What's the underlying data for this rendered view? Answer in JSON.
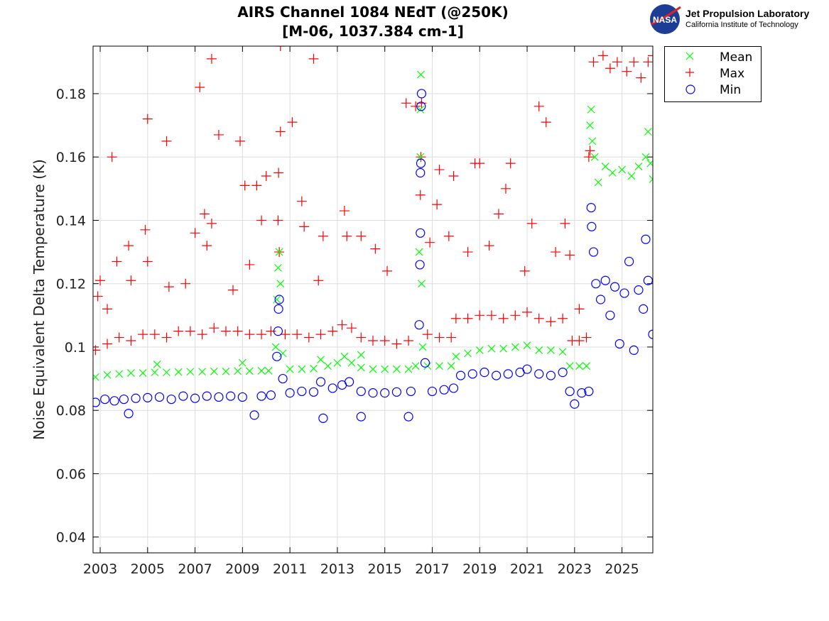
{
  "logo": {
    "org": "Jet Propulsion Laboratory",
    "sub": "California Institute of Technology",
    "badge": "NASA"
  },
  "chart_data": {
    "type": "scatter",
    "title": "AIRS Channel 1084 NEdT (@250K)",
    "subtitle": "[M-06, 1037.384 cm-1]",
    "xlabel": "",
    "ylabel": "Noise Equivalent Delta Temperature (K)",
    "xlim": [
      2002.7,
      2026.3
    ],
    "ylim": [
      0.035,
      0.195
    ],
    "xticks": [
      2003,
      2005,
      2007,
      2009,
      2011,
      2013,
      2015,
      2017,
      2019,
      2021,
      2023,
      2025
    ],
    "yticks": [
      0.04,
      0.06,
      0.08,
      0.1,
      0.12,
      0.14,
      0.16,
      0.18
    ],
    "ytick_labels": [
      "0.04",
      "0.06",
      "0.08",
      "0.1",
      "0.12",
      "0.14",
      "0.16",
      "0.18"
    ],
    "grid": true,
    "legend_position": "outside-top-right",
    "series": [
      {
        "name": "Mean",
        "marker": "x",
        "color": "#00ff00",
        "points": [
          [
            2002.8,
            0.0905
          ],
          [
            2003.3,
            0.0912
          ],
          [
            2003.8,
            0.0915
          ],
          [
            2004.3,
            0.0918
          ],
          [
            2004.8,
            0.0918
          ],
          [
            2005.3,
            0.092
          ],
          [
            2005.4,
            0.0945
          ],
          [
            2005.8,
            0.092
          ],
          [
            2006.3,
            0.0921
          ],
          [
            2006.8,
            0.0922
          ],
          [
            2007.3,
            0.0922
          ],
          [
            2007.8,
            0.0923
          ],
          [
            2008.3,
            0.0923
          ],
          [
            2008.8,
            0.0924
          ],
          [
            2009.0,
            0.095
          ],
          [
            2009.3,
            0.0924
          ],
          [
            2009.8,
            0.0925
          ],
          [
            2010.1,
            0.0925
          ],
          [
            2010.4,
            0.1
          ],
          [
            2010.45,
            0.115
          ],
          [
            2010.5,
            0.125
          ],
          [
            2010.55,
            0.13
          ],
          [
            2010.6,
            0.12
          ],
          [
            2010.7,
            0.098
          ],
          [
            2011.0,
            0.093
          ],
          [
            2011.5,
            0.093
          ],
          [
            2012.0,
            0.0932
          ],
          [
            2012.3,
            0.096
          ],
          [
            2012.6,
            0.094
          ],
          [
            2013.0,
            0.095
          ],
          [
            2013.3,
            0.097
          ],
          [
            2013.6,
            0.095
          ],
          [
            2014.0,
            0.0935
          ],
          [
            2014.0,
            0.0975
          ],
          [
            2014.5,
            0.093
          ],
          [
            2015.0,
            0.093
          ],
          [
            2015.5,
            0.093
          ],
          [
            2016.0,
            0.093
          ],
          [
            2016.3,
            0.094
          ],
          [
            2016.45,
            0.13
          ],
          [
            2016.5,
            0.16
          ],
          [
            2016.5,
            0.175
          ],
          [
            2016.52,
            0.186
          ],
          [
            2016.55,
            0.12
          ],
          [
            2016.6,
            0.1
          ],
          [
            2016.8,
            0.094
          ],
          [
            2017.3,
            0.094
          ],
          [
            2017.8,
            0.094
          ],
          [
            2018.0,
            0.097
          ],
          [
            2018.5,
            0.098
          ],
          [
            2019.0,
            0.099
          ],
          [
            2019.5,
            0.0995
          ],
          [
            2020.0,
            0.0995
          ],
          [
            2020.5,
            0.1
          ],
          [
            2021.0,
            0.1005
          ],
          [
            2021.5,
            0.099
          ],
          [
            2022.0,
            0.099
          ],
          [
            2022.5,
            0.0985
          ],
          [
            2022.8,
            0.094
          ],
          [
            2023.2,
            0.094
          ],
          [
            2023.5,
            0.094
          ],
          [
            2023.65,
            0.17
          ],
          [
            2023.7,
            0.175
          ],
          [
            2023.75,
            0.165
          ],
          [
            2023.85,
            0.16
          ],
          [
            2024.0,
            0.152
          ],
          [
            2024.3,
            0.157
          ],
          [
            2024.6,
            0.155
          ],
          [
            2025.0,
            0.156
          ],
          [
            2025.4,
            0.154
          ],
          [
            2025.7,
            0.157
          ],
          [
            2026.0,
            0.16
          ],
          [
            2026.1,
            0.168
          ],
          [
            2026.2,
            0.158
          ],
          [
            2026.3,
            0.153
          ]
        ]
      },
      {
        "name": "Max",
        "marker": "+",
        "color": "#ff0000",
        "points": [
          [
            2002.8,
            0.099
          ],
          [
            2003.3,
            0.101
          ],
          [
            2003.8,
            0.103
          ],
          [
            2004.3,
            0.102
          ],
          [
            2004.8,
            0.104
          ],
          [
            2005.3,
            0.104
          ],
          [
            2005.8,
            0.103
          ],
          [
            2006.3,
            0.105
          ],
          [
            2006.8,
            0.105
          ],
          [
            2007.3,
            0.104
          ],
          [
            2007.8,
            0.106
          ],
          [
            2008.3,
            0.105
          ],
          [
            2008.8,
            0.105
          ],
          [
            2009.3,
            0.104
          ],
          [
            2009.8,
            0.104
          ],
          [
            2010.2,
            0.105
          ],
          [
            2010.5,
            0.14
          ],
          [
            2010.52,
            0.155
          ],
          [
            2010.55,
            0.13
          ],
          [
            2010.8,
            0.104
          ],
          [
            2011.3,
            0.104
          ],
          [
            2011.8,
            0.103
          ],
          [
            2012.3,
            0.104
          ],
          [
            2012.8,
            0.105
          ],
          [
            2013.2,
            0.107
          ],
          [
            2013.6,
            0.106
          ],
          [
            2014.0,
            0.103
          ],
          [
            2014.5,
            0.102
          ],
          [
            2015.0,
            0.102
          ],
          [
            2015.5,
            0.101
          ],
          [
            2016.0,
            0.102
          ],
          [
            2016.5,
            0.148
          ],
          [
            2016.52,
            0.16
          ],
          [
            2016.55,
            0.177
          ],
          [
            2016.8,
            0.104
          ],
          [
            2017.3,
            0.103
          ],
          [
            2017.8,
            0.103
          ],
          [
            2018.0,
            0.109
          ],
          [
            2018.5,
            0.109
          ],
          [
            2019.0,
            0.11
          ],
          [
            2019.5,
            0.11
          ],
          [
            2020.0,
            0.109
          ],
          [
            2020.5,
            0.11
          ],
          [
            2021.0,
            0.111
          ],
          [
            2021.5,
            0.109
          ],
          [
            2022.0,
            0.108
          ],
          [
            2022.5,
            0.109
          ],
          [
            2022.9,
            0.102
          ],
          [
            2023.2,
            0.102
          ],
          [
            2023.5,
            0.103
          ],
          [
            2023.6,
            0.16
          ],
          [
            2023.65,
            0.162
          ],
          [
            2023.8,
            0.19
          ],
          [
            2024.2,
            0.192
          ],
          [
            2024.5,
            0.188
          ],
          [
            2024.8,
            0.19
          ],
          [
            2025.2,
            0.187
          ],
          [
            2025.5,
            0.19
          ],
          [
            2025.8,
            0.185
          ],
          [
            2026.1,
            0.19
          ],
          [
            2026.3,
            0.192
          ],
          [
            2002.9,
            0.116
          ],
          [
            2003.0,
            0.121
          ],
          [
            2003.3,
            0.112
          ],
          [
            2003.5,
            0.16
          ],
          [
            2003.7,
            0.127
          ],
          [
            2004.2,
            0.132
          ],
          [
            2004.3,
            0.121
          ],
          [
            2004.9,
            0.137
          ],
          [
            2005.0,
            0.172
          ],
          [
            2005.0,
            0.127
          ],
          [
            2005.8,
            0.165
          ],
          [
            2005.9,
            0.119
          ],
          [
            2006.6,
            0.12
          ],
          [
            2007.0,
            0.136
          ],
          [
            2007.2,
            0.182
          ],
          [
            2007.4,
            0.142
          ],
          [
            2007.5,
            0.132
          ],
          [
            2007.7,
            0.191
          ],
          [
            2007.7,
            0.139
          ],
          [
            2008.0,
            0.167
          ],
          [
            2008.6,
            0.118
          ],
          [
            2008.9,
            0.165
          ],
          [
            2009.1,
            0.151
          ],
          [
            2009.3,
            0.126
          ],
          [
            2009.6,
            0.151
          ],
          [
            2009.8,
            0.14
          ],
          [
            2010.0,
            0.154
          ],
          [
            2010.6,
            0.168
          ],
          [
            2010.6,
            0.195
          ],
          [
            2011.1,
            0.171
          ],
          [
            2011.5,
            0.146
          ],
          [
            2011.6,
            0.138
          ],
          [
            2012.0,
            0.191
          ],
          [
            2012.2,
            0.121
          ],
          [
            2012.4,
            0.135
          ],
          [
            2013.3,
            0.143
          ],
          [
            2013.4,
            0.135
          ],
          [
            2014.0,
            0.135
          ],
          [
            2014.6,
            0.131
          ],
          [
            2015.1,
            0.124
          ],
          [
            2015.9,
            0.177
          ],
          [
            2016.3,
            0.176
          ],
          [
            2016.9,
            0.133
          ],
          [
            2017.2,
            0.145
          ],
          [
            2017.3,
            0.156
          ],
          [
            2017.7,
            0.135
          ],
          [
            2017.9,
            0.154
          ],
          [
            2018.5,
            0.13
          ],
          [
            2018.8,
            0.158
          ],
          [
            2019.0,
            0.158
          ],
          [
            2019.4,
            0.132
          ],
          [
            2019.8,
            0.142
          ],
          [
            2020.1,
            0.15
          ],
          [
            2020.3,
            0.158
          ],
          [
            2020.9,
            0.124
          ],
          [
            2021.2,
            0.139
          ],
          [
            2021.5,
            0.176
          ],
          [
            2021.8,
            0.171
          ],
          [
            2022.2,
            0.13
          ],
          [
            2022.6,
            0.139
          ],
          [
            2022.8,
            0.129
          ],
          [
            2023.2,
            0.112
          ]
        ]
      },
      {
        "name": "Min",
        "marker": "o",
        "color": "#0000ff",
        "points": [
          [
            2002.8,
            0.0825
          ],
          [
            2003.2,
            0.0835
          ],
          [
            2003.6,
            0.083
          ],
          [
            2004.0,
            0.0835
          ],
          [
            2004.2,
            0.079
          ],
          [
            2004.5,
            0.0838
          ],
          [
            2005.0,
            0.084
          ],
          [
            2005.5,
            0.0842
          ],
          [
            2006.0,
            0.0835
          ],
          [
            2006.5,
            0.0845
          ],
          [
            2007.0,
            0.0838
          ],
          [
            2007.5,
            0.0845
          ],
          [
            2008.0,
            0.0842
          ],
          [
            2008.5,
            0.0845
          ],
          [
            2009.0,
            0.0842
          ],
          [
            2009.5,
            0.0785
          ],
          [
            2009.8,
            0.0845
          ],
          [
            2010.2,
            0.0848
          ],
          [
            2010.45,
            0.097
          ],
          [
            2010.5,
            0.105
          ],
          [
            2010.52,
            0.112
          ],
          [
            2010.55,
            0.115
          ],
          [
            2010.7,
            0.09
          ],
          [
            2011.0,
            0.0855
          ],
          [
            2011.5,
            0.086
          ],
          [
            2012.0,
            0.0858
          ],
          [
            2012.3,
            0.089
          ],
          [
            2012.4,
            0.0775
          ],
          [
            2012.8,
            0.087
          ],
          [
            2013.2,
            0.088
          ],
          [
            2013.5,
            0.089
          ],
          [
            2014.0,
            0.078
          ],
          [
            2014.0,
            0.086
          ],
          [
            2014.5,
            0.0855
          ],
          [
            2015.0,
            0.0855
          ],
          [
            2015.5,
            0.0858
          ],
          [
            2016.0,
            0.078
          ],
          [
            2016.1,
            0.086
          ],
          [
            2016.45,
            0.107
          ],
          [
            2016.48,
            0.126
          ],
          [
            2016.5,
            0.136
          ],
          [
            2016.5,
            0.155
          ],
          [
            2016.52,
            0.158
          ],
          [
            2016.53,
            0.176
          ],
          [
            2016.55,
            0.18
          ],
          [
            2016.7,
            0.095
          ],
          [
            2017.0,
            0.086
          ],
          [
            2017.5,
            0.0865
          ],
          [
            2017.9,
            0.087
          ],
          [
            2018.2,
            0.091
          ],
          [
            2018.7,
            0.0915
          ],
          [
            2019.2,
            0.092
          ],
          [
            2019.7,
            0.091
          ],
          [
            2020.2,
            0.0915
          ],
          [
            2020.7,
            0.092
          ],
          [
            2021.0,
            0.093
          ],
          [
            2021.5,
            0.0915
          ],
          [
            2022.0,
            0.091
          ],
          [
            2022.5,
            0.092
          ],
          [
            2022.8,
            0.086
          ],
          [
            2023.0,
            0.082
          ],
          [
            2023.3,
            0.0855
          ],
          [
            2023.6,
            0.086
          ],
          [
            2023.7,
            0.144
          ],
          [
            2023.72,
            0.138
          ],
          [
            2023.8,
            0.13
          ],
          [
            2023.9,
            0.12
          ],
          [
            2024.1,
            0.115
          ],
          [
            2024.3,
            0.121
          ],
          [
            2024.5,
            0.11
          ],
          [
            2024.7,
            0.119
          ],
          [
            2024.9,
            0.101
          ],
          [
            2025.1,
            0.117
          ],
          [
            2025.3,
            0.127
          ],
          [
            2025.5,
            0.099
          ],
          [
            2025.7,
            0.118
          ],
          [
            2025.9,
            0.112
          ],
          [
            2026.0,
            0.134
          ],
          [
            2026.1,
            0.121
          ],
          [
            2026.3,
            0.104
          ]
        ]
      }
    ]
  }
}
